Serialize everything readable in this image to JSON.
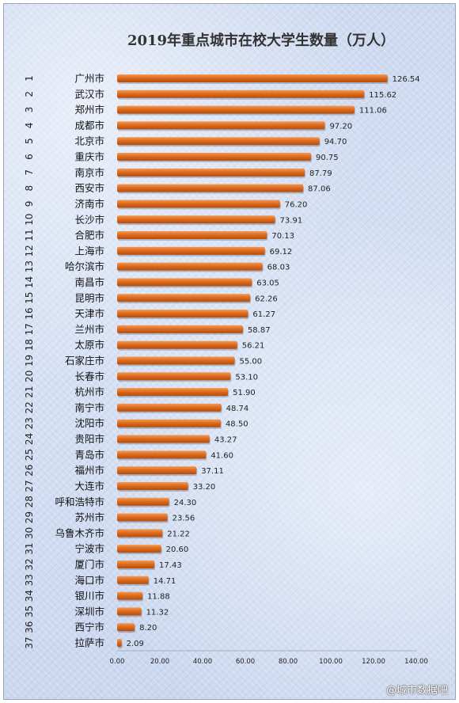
{
  "chart_data": {
    "type": "bar",
    "orientation": "horizontal",
    "title": "2019年重点城市在校大学生数量（万人）",
    "ranks": [
      "1",
      "2",
      "3",
      "4",
      "5",
      "6",
      "7",
      "8",
      "9",
      "10",
      "11",
      "12",
      "13",
      "14",
      "15",
      "16",
      "17",
      "18",
      "19",
      "20",
      "21",
      "22",
      "23",
      "24",
      "25",
      "26",
      "27",
      "28",
      "29",
      "30",
      "31",
      "32",
      "33",
      "34",
      "35",
      "36",
      "37"
    ],
    "categories": [
      "广州市",
      "武汉市",
      "郑州市",
      "成都市",
      "北京市",
      "重庆市",
      "南京市",
      "西安市",
      "济南市",
      "长沙市",
      "合肥市",
      "上海市",
      "哈尔滨市",
      "南昌市",
      "昆明市",
      "天津市",
      "兰州市",
      "太原市",
      "石家庄市",
      "长春市",
      "杭州市",
      "南宁市",
      "沈阳市",
      "贵阳市",
      "青岛市",
      "福州市",
      "大连市",
      "呼和浩特市",
      "苏州市",
      "乌鲁木齐市",
      "宁波市",
      "厦门市",
      "海口市",
      "银川市",
      "深圳市",
      "西宁市",
      "拉萨市"
    ],
    "values": [
      126.54,
      115.62,
      111.06,
      97.2,
      94.7,
      90.75,
      87.79,
      87.06,
      76.2,
      73.91,
      70.13,
      69.12,
      68.03,
      63.05,
      62.26,
      61.27,
      58.87,
      56.21,
      55.0,
      53.1,
      51.9,
      48.74,
      48.5,
      43.27,
      41.6,
      37.11,
      33.2,
      24.3,
      23.56,
      21.22,
      20.6,
      17.43,
      14.71,
      11.88,
      11.32,
      8.2,
      2.09
    ],
    "value_labels": [
      "126.54",
      "115.62",
      "111.06",
      "97.20",
      "94.70",
      "90.75",
      "87.79",
      "87.06",
      "76.20",
      "73.91",
      "70.13",
      "69.12",
      "68.03",
      "63.05",
      "62.26",
      "61.27",
      "58.87",
      "56.21",
      "55.00",
      "53.10",
      "51.90",
      "48.74",
      "48.50",
      "43.27",
      "41.60",
      "37.11",
      "33.20",
      "24.30",
      "23.56",
      "21.22",
      "20.60",
      "17.43",
      "14.71",
      "11.88",
      "11.32",
      "8.20",
      "2.09"
    ],
    "xlim": [
      0,
      140
    ],
    "xticks": [
      "0.00",
      "20.00",
      "40.00",
      "60.00",
      "80.00",
      "100.00",
      "120.00",
      "140.00"
    ],
    "grid": false,
    "legend": "none",
    "bar_color": "#d9681a"
  },
  "watermark": "@城市数据吧"
}
